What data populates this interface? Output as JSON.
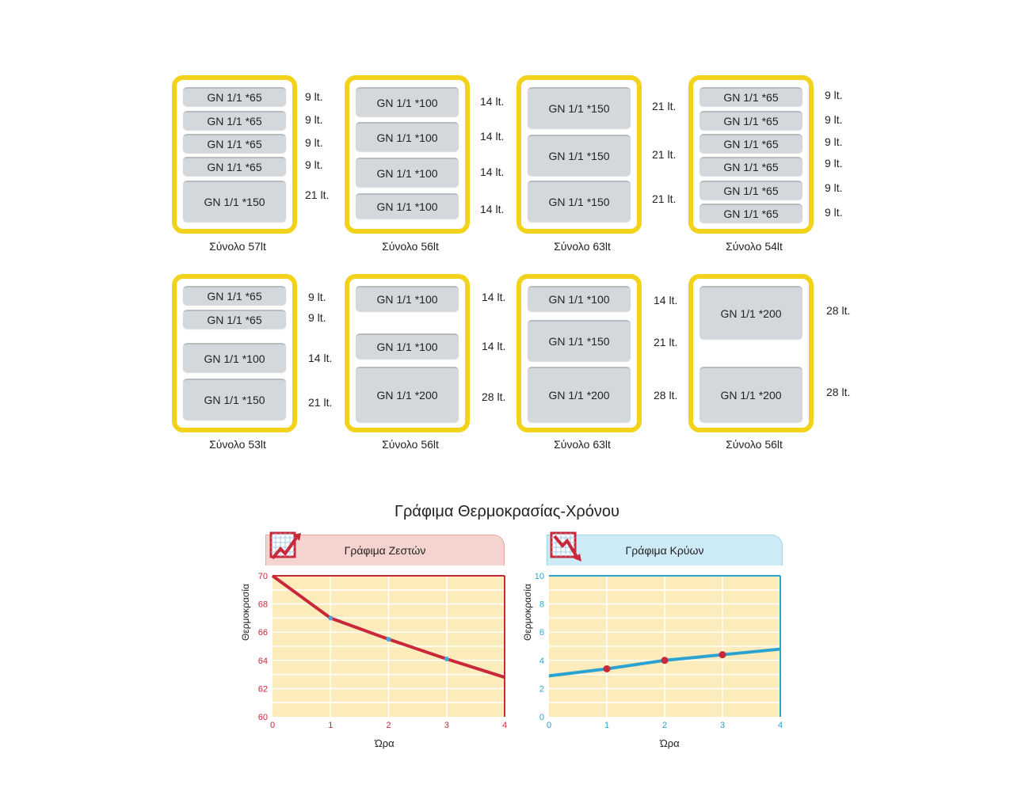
{
  "containers": [
    {
      "trays": [
        {
          "label": "GN 1/1 *65",
          "lt": "9 lt."
        },
        {
          "label": "GN 1/1 *65",
          "lt": "9 lt."
        },
        {
          "label": "GN 1/1 *65",
          "lt": "9 lt."
        },
        {
          "label": "GN 1/1 *65",
          "lt": "9 lt."
        },
        {
          "label": "GN 1/1 *150",
          "lt": "21 lt."
        }
      ],
      "total": "Σύνολο 57lt"
    },
    {
      "trays": [
        {
          "label": "GN 1/1 *100",
          "lt": "14 lt."
        },
        {
          "label": "GN 1/1 *100",
          "lt": "14 lt."
        },
        {
          "label": "GN 1/1 *100",
          "lt": "14 lt."
        },
        {
          "label": "GN 1/1 *100",
          "lt": "14 lt."
        }
      ],
      "total": "Σύνολο 56lt"
    },
    {
      "trays": [
        {
          "label": "GN 1/1 *150",
          "lt": "21 lt."
        },
        {
          "label": "GN 1/1 *150",
          "lt": "21 lt."
        },
        {
          "label": "GN 1/1 *150",
          "lt": "21 lt."
        }
      ],
      "total": "Σύνολο 63lt"
    },
    {
      "trays": [
        {
          "label": "GN 1/1 *65",
          "lt": "9 lt."
        },
        {
          "label": "GN 1/1 *65",
          "lt": "9 lt."
        },
        {
          "label": "GN 1/1 *65",
          "lt": "9 lt."
        },
        {
          "label": "GN 1/1 *65",
          "lt": "9 lt."
        },
        {
          "label": "GN 1/1 *65",
          "lt": "9 lt."
        },
        {
          "label": "GN 1/1 *65",
          "lt": "9 lt."
        }
      ],
      "total": "Σύνολο 54lt"
    },
    {
      "trays": [
        {
          "label": "GN 1/1 *65",
          "lt": "9 lt."
        },
        {
          "label": "GN 1/1 *65",
          "lt": "9 lt."
        },
        {
          "label": "GN 1/1 *100",
          "lt": "14 lt."
        },
        {
          "label": "GN 1/1 *150",
          "lt": "21 lt."
        }
      ],
      "total": "Σύνολο 53lt"
    },
    {
      "trays": [
        {
          "label": "GN 1/1 *100",
          "lt": "14 lt."
        },
        {
          "label": "GN 1/1 *100",
          "lt": "14 lt."
        },
        {
          "label": "GN 1/1 *200",
          "lt": "28 lt."
        }
      ],
      "total": "Σύνολο 56lt"
    },
    {
      "trays": [
        {
          "label": "GN 1/1 *100",
          "lt": "14 lt."
        },
        {
          "label": "GN 1/1 *150",
          "lt": "21 lt."
        },
        {
          "label": "GN 1/1 *200",
          "lt": "28 lt."
        }
      ],
      "total": "Σύνολο 63lt"
    },
    {
      "trays": [
        {
          "label": "GN 1/1 *200",
          "lt": "28 lt."
        },
        {
          "label": "GN 1/1 *200",
          "lt": "28 lt."
        }
      ],
      "total": "Σύνολο 56lt"
    }
  ],
  "charts_title": "Γράφιμα Θερμοκρασίας-Χρόνου",
  "chart_data": [
    {
      "type": "line",
      "title": "Γράφιμα Ζεστών",
      "xlabel": "Ώρα",
      "ylabel": "Θερμοκρασία",
      "x": [
        0,
        1,
        2,
        3,
        4
      ],
      "y": [
        70,
        67,
        65.5,
        64.1,
        62.8
      ],
      "xlim": [
        0,
        4
      ],
      "ylim": [
        60,
        70
      ],
      "yticks": [
        60,
        62,
        64,
        66,
        68,
        70
      ],
      "xticks": [
        0,
        1,
        2,
        3,
        4
      ],
      "grid": true,
      "line_color": "#c9283a",
      "marker_color": "#4aa6d6",
      "axis_color": "#c9283a",
      "tab_color": "#f5d3cf"
    },
    {
      "type": "line",
      "title": "Γράφιμα Κρύων",
      "xlabel": "Ώρα",
      "ylabel": "Θερμοκρασία",
      "x": [
        0,
        1,
        2,
        3,
        4
      ],
      "y": [
        2.9,
        3.4,
        4.0,
        4.4,
        4.8
      ],
      "xlim": [
        0,
        4
      ],
      "ylim": [
        0,
        10
      ],
      "yticks": [
        0,
        2,
        4,
        6,
        8,
        10
      ],
      "xticks": [
        0,
        1,
        2,
        3,
        4
      ],
      "grid": true,
      "line_color": "#2ba3d0",
      "marker_color": "#c9283a",
      "axis_color": "#2ba3d0",
      "tab_color": "#cdeaf7"
    }
  ]
}
